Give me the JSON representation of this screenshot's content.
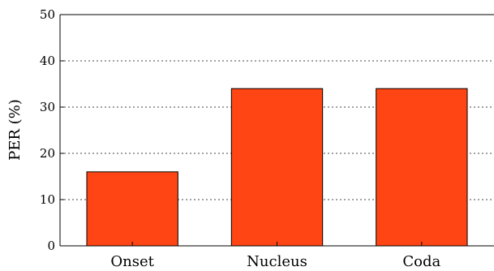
{
  "chart_data": {
    "type": "bar",
    "categories": [
      "Onset",
      "Nucleus",
      "Coda"
    ],
    "values": [
      16,
      34,
      34
    ],
    "title": "",
    "xlabel": "",
    "ylabel": "PER (%)",
    "ylim": [
      0,
      50
    ],
    "yticks": [
      0,
      10,
      20,
      30,
      40,
      50
    ],
    "grid": "dotted horizontal",
    "bar_color": "#ff4513",
    "bar_edge_color": "#000000"
  }
}
